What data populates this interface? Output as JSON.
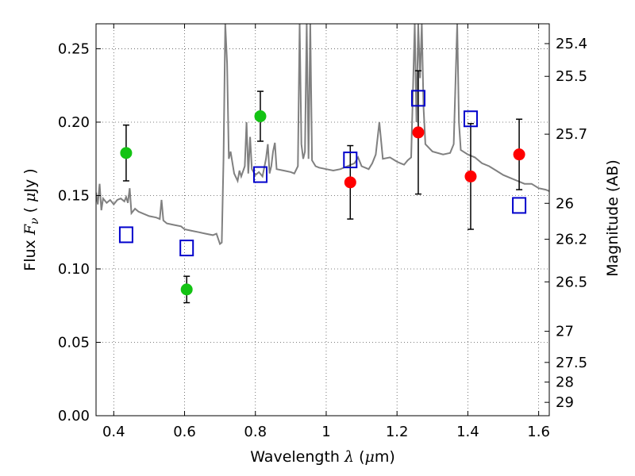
{
  "chart_data": {
    "type": "scatter",
    "xlabel": "Wavelength  λ (μm)",
    "ylabel": "Flux  Fν  ( μJy )",
    "right_ylabel": "Magnitude (AB)",
    "xlim": [
      0.35,
      1.63
    ],
    "ylim": [
      0.0,
      0.267
    ],
    "grid": true,
    "x_ticks": [
      0.4,
      0.6,
      0.8,
      1.0,
      1.2,
      1.4,
      1.6
    ],
    "x_tick_labels": [
      "0.4",
      "0.6",
      "0.8",
      "1",
      "1.2",
      "1.4",
      "1.6"
    ],
    "y_ticks": [
      0.0,
      0.05,
      0.1,
      0.15,
      0.2,
      0.25
    ],
    "y_tick_labels": [
      "0.00",
      "0.05",
      "0.10",
      "0.15",
      "0.20",
      "0.25"
    ],
    "right_ticks": [
      {
        "flux": 0.2535,
        "label": "25.4"
      },
      {
        "flux": 0.2312,
        "label": "25.5"
      },
      {
        "flux": 0.1918,
        "label": "25.7"
      },
      {
        "flux": 0.1447,
        "label": "26"
      },
      {
        "flux": 0.1202,
        "label": "26.2"
      },
      {
        "flux": 0.0912,
        "label": "26.5"
      },
      {
        "flux": 0.0575,
        "label": "27"
      },
      {
        "flux": 0.0363,
        "label": "27.5"
      },
      {
        "flux": 0.0229,
        "label": "28"
      },
      {
        "flux": 0.0091,
        "label": "29"
      }
    ],
    "series": [
      {
        "marker": "circle",
        "color": "#13c313",
        "points": [
          {
            "x": 0.435,
            "y": 0.179,
            "err": 0.019
          },
          {
            "x": 0.606,
            "y": 0.086,
            "err": 0.009
          },
          {
            "x": 0.814,
            "y": 0.204,
            "err": 0.017
          }
        ]
      },
      {
        "marker": "circle",
        "color": "#ff0000",
        "points": [
          {
            "x": 1.068,
            "y": 0.159,
            "err": 0.025
          },
          {
            "x": 1.26,
            "y": 0.193,
            "err": 0.042
          },
          {
            "x": 1.408,
            "y": 0.163,
            "err": 0.036
          },
          {
            "x": 1.545,
            "y": 0.178,
            "err": 0.024
          }
        ]
      },
      {
        "marker": "open-square",
        "color": "#0000cc",
        "points": [
          {
            "x": 0.435,
            "y": 0.123
          },
          {
            "x": 0.606,
            "y": 0.114
          },
          {
            "x": 0.814,
            "y": 0.164
          },
          {
            "x": 1.068,
            "y": 0.174
          },
          {
            "x": 1.26,
            "y": 0.216
          },
          {
            "x": 1.408,
            "y": 0.202
          },
          {
            "x": 1.545,
            "y": 0.143
          }
        ]
      }
    ],
    "model_spectrum": {
      "color": "#808080",
      "points": [
        [
          0.35,
          0.152
        ],
        [
          0.355,
          0.144
        ],
        [
          0.36,
          0.158
        ],
        [
          0.365,
          0.14
        ],
        [
          0.37,
          0.148
        ],
        [
          0.38,
          0.145
        ],
        [
          0.39,
          0.147
        ],
        [
          0.4,
          0.144
        ],
        [
          0.41,
          0.147
        ],
        [
          0.42,
          0.148
        ],
        [
          0.43,
          0.146
        ],
        [
          0.435,
          0.149
        ],
        [
          0.44,
          0.145
        ],
        [
          0.445,
          0.155
        ],
        [
          0.45,
          0.138
        ],
        [
          0.46,
          0.141
        ],
        [
          0.47,
          0.139
        ],
        [
          0.48,
          0.138
        ],
        [
          0.5,
          0.136
        ],
        [
          0.52,
          0.135
        ],
        [
          0.53,
          0.134
        ],
        [
          0.535,
          0.147
        ],
        [
          0.54,
          0.133
        ],
        [
          0.55,
          0.131
        ],
        [
          0.57,
          0.13
        ],
        [
          0.59,
          0.129
        ],
        [
          0.6,
          0.127
        ],
        [
          0.62,
          0.126
        ],
        [
          0.64,
          0.125
        ],
        [
          0.66,
          0.124
        ],
        [
          0.68,
          0.123
        ],
        [
          0.69,
          0.124
        ],
        [
          0.7,
          0.117
        ],
        [
          0.705,
          0.118
        ],
        [
          0.71,
          0.175
        ],
        [
          0.715,
          0.267
        ],
        [
          0.72,
          0.24
        ],
        [
          0.725,
          0.175
        ],
        [
          0.73,
          0.18
        ],
        [
          0.74,
          0.165
        ],
        [
          0.75,
          0.16
        ],
        [
          0.755,
          0.167
        ],
        [
          0.76,
          0.163
        ],
        [
          0.77,
          0.17
        ],
        [
          0.775,
          0.2
        ],
        [
          0.78,
          0.165
        ],
        [
          0.785,
          0.19
        ],
        [
          0.79,
          0.168
        ],
        [
          0.8,
          0.164
        ],
        [
          0.81,
          0.166
        ],
        [
          0.82,
          0.163
        ],
        [
          0.83,
          0.175
        ],
        [
          0.835,
          0.185
        ],
        [
          0.84,
          0.165
        ],
        [
          0.845,
          0.17
        ],
        [
          0.85,
          0.18
        ],
        [
          0.855,
          0.186
        ],
        [
          0.86,
          0.168
        ],
        [
          0.88,
          0.167
        ],
        [
          0.9,
          0.166
        ],
        [
          0.91,
          0.165
        ],
        [
          0.92,
          0.17
        ],
        [
          0.925,
          0.267
        ],
        [
          0.93,
          0.185
        ],
        [
          0.935,
          0.175
        ],
        [
          0.94,
          0.18
        ],
        [
          0.945,
          0.267
        ],
        [
          0.95,
          0.175
        ],
        [
          0.955,
          0.267
        ],
        [
          0.96,
          0.174
        ],
        [
          0.97,
          0.17
        ],
        [
          0.98,
          0.169
        ],
        [
          1.0,
          0.168
        ],
        [
          1.02,
          0.167
        ],
        [
          1.04,
          0.168
        ],
        [
          1.06,
          0.17
        ],
        [
          1.08,
          0.172
        ],
        [
          1.09,
          0.176
        ],
        [
          1.1,
          0.17
        ],
        [
          1.12,
          0.168
        ],
        [
          1.13,
          0.172
        ],
        [
          1.14,
          0.178
        ],
        [
          1.15,
          0.2
        ],
        [
          1.16,
          0.175
        ],
        [
          1.18,
          0.176
        ],
        [
          1.2,
          0.173
        ],
        [
          1.21,
          0.172
        ],
        [
          1.22,
          0.171
        ],
        [
          1.23,
          0.174
        ],
        [
          1.24,
          0.176
        ],
        [
          1.25,
          0.267
        ],
        [
          1.255,
          0.2
        ],
        [
          1.26,
          0.267
        ],
        [
          1.265,
          0.23
        ],
        [
          1.27,
          0.267
        ],
        [
          1.275,
          0.21
        ],
        [
          1.28,
          0.185
        ],
        [
          1.3,
          0.18
        ],
        [
          1.33,
          0.178
        ],
        [
          1.35,
          0.179
        ],
        [
          1.36,
          0.185
        ],
        [
          1.37,
          0.267
        ],
        [
          1.375,
          0.2
        ],
        [
          1.38,
          0.181
        ],
        [
          1.4,
          0.178
        ],
        [
          1.42,
          0.176
        ],
        [
          1.44,
          0.172
        ],
        [
          1.46,
          0.17
        ],
        [
          1.48,
          0.167
        ],
        [
          1.5,
          0.164
        ],
        [
          1.52,
          0.162
        ],
        [
          1.54,
          0.16
        ],
        [
          1.56,
          0.158
        ],
        [
          1.58,
          0.158
        ],
        [
          1.6,
          0.155
        ],
        [
          1.62,
          0.154
        ],
        [
          1.63,
          0.153
        ]
      ]
    }
  }
}
